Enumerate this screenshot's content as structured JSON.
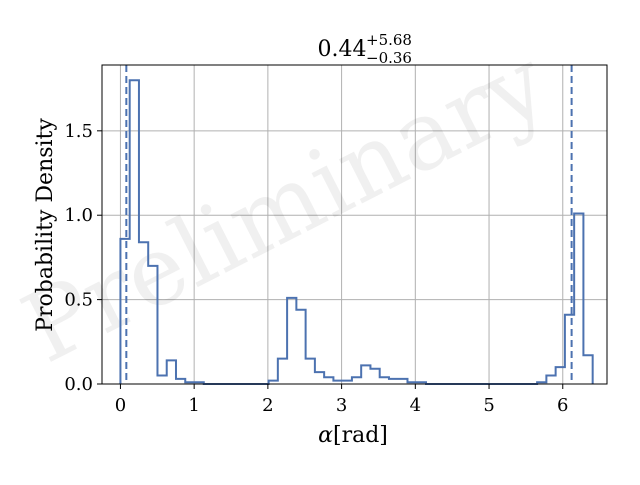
{
  "chart_data": {
    "type": "histogram",
    "title": {
      "value": "0.44",
      "upper": "+5.68",
      "lower": "−0.36"
    },
    "xlabel": {
      "symbol": "α",
      "unit": "[rad]"
    },
    "ylabel": "Probability Density",
    "watermark": "Preliminary",
    "xlim": [
      -0.25,
      6.6
    ],
    "ylim": [
      0,
      1.89
    ],
    "xticks": [
      0,
      1,
      2,
      3,
      4,
      5,
      6
    ],
    "yticks": [
      0.0,
      0.5,
      1.0,
      1.5
    ],
    "ytick_labels": [
      "0.0",
      "0.5",
      "1.0",
      "1.5"
    ],
    "grid": true,
    "bin_width": 0.1256,
    "bin_start": 0,
    "values": [
      0.86,
      1.8,
      0.84,
      0.7,
      0.05,
      0.14,
      0.03,
      0.01,
      0.01,
      0.0,
      0.0,
      0.0,
      0.0,
      0.0,
      0.0,
      0.0,
      0.02,
      0.15,
      0.51,
      0.44,
      0.15,
      0.07,
      0.04,
      0.02,
      0.02,
      0.04,
      0.11,
      0.09,
      0.04,
      0.03,
      0.03,
      0.01,
      0.01,
      0.0,
      0.0,
      0.0,
      0.0,
      0.0,
      0.0,
      0.0,
      0.0,
      0.0,
      0.0,
      0.0,
      0.0,
      0.01,
      0.05,
      0.1,
      0.41,
      1.01,
      0.17
    ],
    "quantile_lines": [
      0.08,
      6.12
    ],
    "colors": {
      "line": "#4c72b0",
      "grid": "#b0b0b0"
    }
  }
}
